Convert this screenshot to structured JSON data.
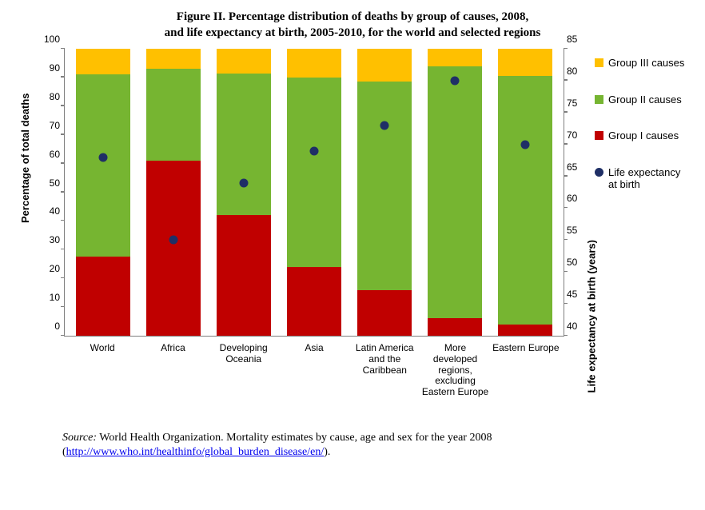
{
  "title_line1": "Figure II. Percentage distribution of deaths by group of causes, 2008,",
  "title_line2": "and life expectancy at birth, 2005-2010, for the world and selected regions",
  "chart": {
    "type": "stacked-bar-with-secondary-scatter",
    "background_color": "#ffffff",
    "axis_color": "#7f7f7f",
    "font_family_axes": "Arial",
    "axis_fontsize": 12,
    "label_fontsize": 13,
    "y_left": {
      "label": "Percentage of total deaths",
      "min": 0,
      "max": 100,
      "step": 10
    },
    "y_right": {
      "label": "Life expectancy at birth (years)",
      "min": 40,
      "max": 85,
      "step": 5
    },
    "categories": [
      "World",
      "Africa",
      "Developing Oceania",
      "Asia",
      "Latin America and the Caribbean",
      "More developed regions, excluding Eastern Europe",
      "Eastern Europe"
    ],
    "stacks": {
      "group1": {
        "label": "Group I causes",
        "color": "#c00000",
        "values": [
          27.5,
          61,
          42,
          24,
          16,
          6,
          4
        ]
      },
      "group2": {
        "label": "Group II causes",
        "color": "#76b531",
        "values": [
          63.5,
          32,
          49.5,
          66,
          72.5,
          88,
          86.5
        ]
      },
      "group3": {
        "label": "Group III causes",
        "color": "#ffc000",
        "values": [
          9,
          7,
          8.5,
          10,
          11.5,
          6,
          9.5
        ]
      }
    },
    "scatter": {
      "label": "Life expectancy at birth",
      "color": "#1f2f66",
      "marker": "circle",
      "marker_size": 11,
      "values_right_axis": [
        68,
        55,
        64,
        69,
        73,
        80,
        70
      ]
    },
    "bar_width": 0.78
  },
  "legend": {
    "items": [
      {
        "key": "group3",
        "label": "Group III causes"
      },
      {
        "key": "group2",
        "label": "Group II causes"
      },
      {
        "key": "group1",
        "label": "Group I causes"
      },
      {
        "key": "scatter",
        "label": "Life expectancy at birth"
      }
    ]
  },
  "source": {
    "prefix_italic": "Source:",
    "text_before_link": " World Health Organization. Mortality estimates by cause, age and sex for the year 2008 (",
    "link_text": "http://www.who.int/healthinfo/global_burden_disease/en/",
    "text_after_link": ")."
  }
}
